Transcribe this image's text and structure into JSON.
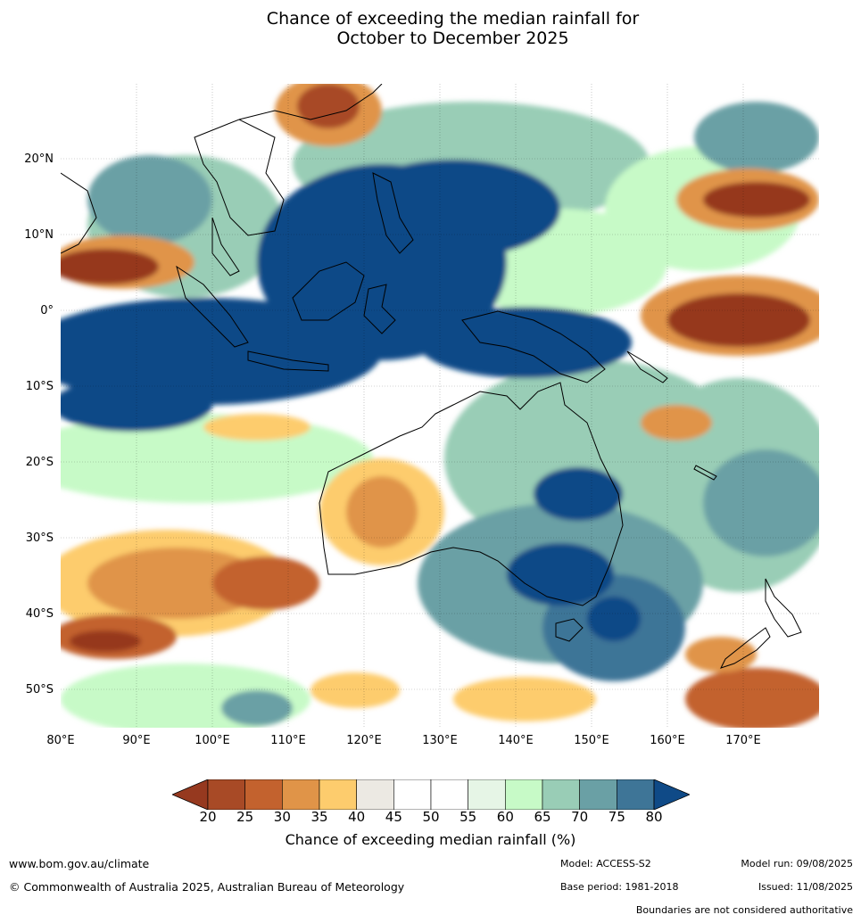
{
  "title_line1": "Chance of exceeding the median rainfall for",
  "title_line2": "October to December 2025",
  "lat_ticks": [
    "20°N",
    "10°N",
    "0°",
    "10°S",
    "20°S",
    "30°S",
    "40°S",
    "50°S"
  ],
  "lon_ticks": [
    "80°E",
    "90°E",
    "100°E",
    "110°E",
    "120°E",
    "130°E",
    "140°E",
    "150°E",
    "160°E",
    "170°E"
  ],
  "colorbar": {
    "ticks": [
      "20",
      "25",
      "30",
      "35",
      "40",
      "45",
      "50",
      "55",
      "60",
      "65",
      "70",
      "75",
      "80"
    ],
    "colors": {
      "below_20": "#96391f",
      "20_25": "#a84a26",
      "25_30": "#c3622e",
      "30_35": "#e09448",
      "35_40": "#fdcc6d",
      "40_45": "#ece9e3",
      "45_50": "#ffffff",
      "50_55": "#ffffff",
      "55_60": "#e6f5e6",
      "60_65": "#c7fac7",
      "65_70": "#99cdb6",
      "70_75": "#6aa0a5",
      "75_80": "#3e7597",
      "above_80": "#0f4a87"
    },
    "label": "Chance of exceeding median rainfall (%)"
  },
  "footer": {
    "website": "www.bom.gov.au/climate",
    "copyright": "© Commonwealth of Australia 2025, Australian Bureau of Meteorology",
    "model": "Model: ACCESS-S2",
    "base_period": "Base period: 1981-2018",
    "model_run": "Model run: 09/08/2025",
    "issued": "Issued: 11/08/2025",
    "disclaimer": "Boundaries are not considered authoritative"
  }
}
